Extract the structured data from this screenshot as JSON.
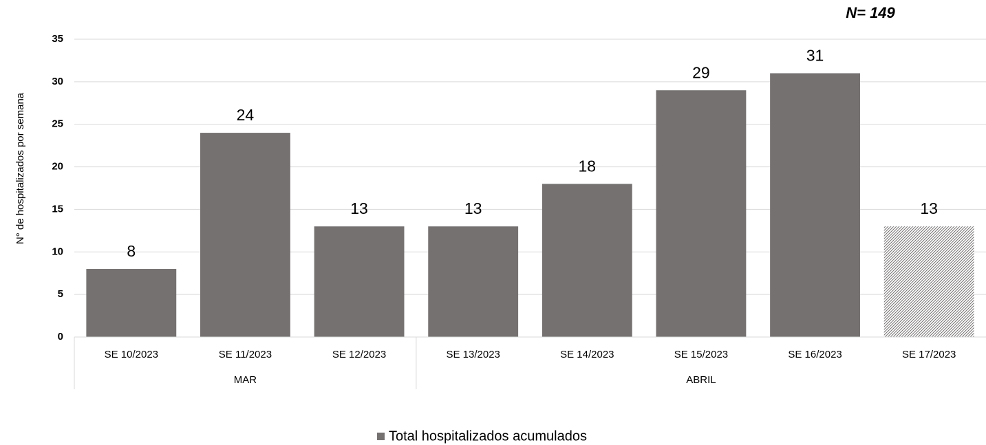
{
  "chart_data": {
    "type": "bar",
    "annotation": "N= 149",
    "y_label": "N° de hospitalizados por semana",
    "categories": [
      "SE 10/2023",
      "SE 11/2023",
      "SE 12/2023",
      "SE 13/2023",
      "SE 14/2023",
      "SE 15/2023",
      "SE 16/2023",
      "SE 17/2023"
    ],
    "groups": [
      {
        "label": "MAR",
        "span": 3
      },
      {
        "label": "ABRIL",
        "span": 5
      }
    ],
    "series": [
      {
        "name": "Total hospitalizados acumulados",
        "color": "#757171",
        "values": [
          8,
          24,
          13,
          13,
          18,
          29,
          31,
          13
        ],
        "patterns": [
          "solid",
          "solid",
          "solid",
          "solid",
          "solid",
          "solid",
          "solid",
          "hatched"
        ]
      }
    ],
    "ylim": [
      0,
      35
    ],
    "yticks": [
      0,
      5,
      10,
      15,
      20,
      25,
      30,
      35
    ],
    "grid": true,
    "legend": "bottom"
  }
}
